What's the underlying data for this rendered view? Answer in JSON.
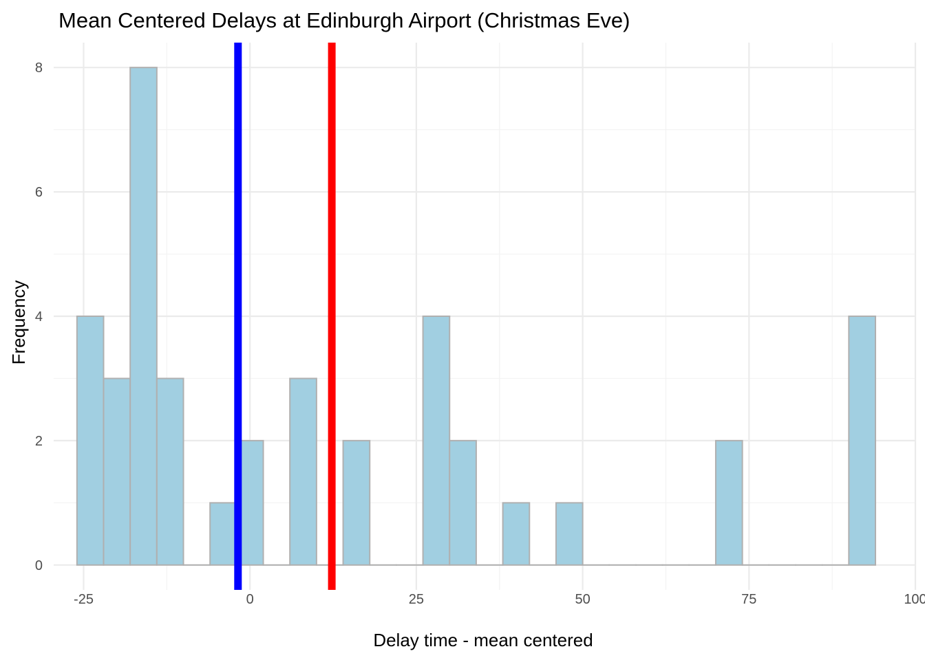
{
  "chart_data": {
    "type": "bar",
    "title": "Mean Centered Delays at Edinburgh Airport (Christmas Eve)",
    "xlabel": "Delay time - mean centered",
    "ylabel": "Frequency",
    "xlim": [
      -29.5,
      100
    ],
    "ylim": [
      -0.4,
      8.4
    ],
    "x_ticks": [
      -25,
      0,
      25,
      50,
      75,
      100
    ],
    "y_ticks": [
      0,
      2,
      4,
      6,
      8
    ],
    "grid": true,
    "bin_width": 4.0,
    "bins": [
      {
        "start": -26.0,
        "end": -22.0,
        "count": 4
      },
      {
        "start": -22.0,
        "end": -18.0,
        "count": 3
      },
      {
        "start": -18.0,
        "end": -14.0,
        "count": 8
      },
      {
        "start": -14.0,
        "end": -10.0,
        "count": 3
      },
      {
        "start": -10.0,
        "end": -6.0,
        "count": 0
      },
      {
        "start": -6.0,
        "end": -2.0,
        "count": 1
      },
      {
        "start": -2.0,
        "end": 2.0,
        "count": 2
      },
      {
        "start": 2.0,
        "end": 6.0,
        "count": 0
      },
      {
        "start": 6.0,
        "end": 10.0,
        "count": 3
      },
      {
        "start": 10.0,
        "end": 14.0,
        "count": 0
      },
      {
        "start": 14.0,
        "end": 18.0,
        "count": 2
      },
      {
        "start": 18.0,
        "end": 22.0,
        "count": 0
      },
      {
        "start": 22.0,
        "end": 26.0,
        "count": 0
      },
      {
        "start": 26.0,
        "end": 30.0,
        "count": 4
      },
      {
        "start": 30.0,
        "end": 34.0,
        "count": 2
      },
      {
        "start": 34.0,
        "end": 38.0,
        "count": 0
      },
      {
        "start": 38.0,
        "end": 42.0,
        "count": 1
      },
      {
        "start": 42.0,
        "end": 46.0,
        "count": 0
      },
      {
        "start": 46.0,
        "end": 50.0,
        "count": 1
      },
      {
        "start": 50.0,
        "end": 54.0,
        "count": 0
      },
      {
        "start": 54.0,
        "end": 58.0,
        "count": 0
      },
      {
        "start": 58.0,
        "end": 62.0,
        "count": 0
      },
      {
        "start": 62.0,
        "end": 66.0,
        "count": 0
      },
      {
        "start": 66.0,
        "end": 70.0,
        "count": 0
      },
      {
        "start": 70.0,
        "end": 74.0,
        "count": 2
      },
      {
        "start": 74.0,
        "end": 78.0,
        "count": 0
      },
      {
        "start": 78.0,
        "end": 82.0,
        "count": 0
      },
      {
        "start": 82.0,
        "end": 86.0,
        "count": 0
      },
      {
        "start": 86.0,
        "end": 90.0,
        "count": 0
      },
      {
        "start": 90.0,
        "end": 94.0,
        "count": 4
      }
    ],
    "vlines": [
      {
        "x": -1.8,
        "color": "#0000ff"
      },
      {
        "x": 12.3,
        "color": "#ff0000"
      }
    ],
    "colors": {
      "bar_fill": "#a1cfe1",
      "bar_stroke": "#b0b0b0",
      "grid_major": "#ebebeb",
      "grid_minor": "#f3f3f3"
    }
  }
}
